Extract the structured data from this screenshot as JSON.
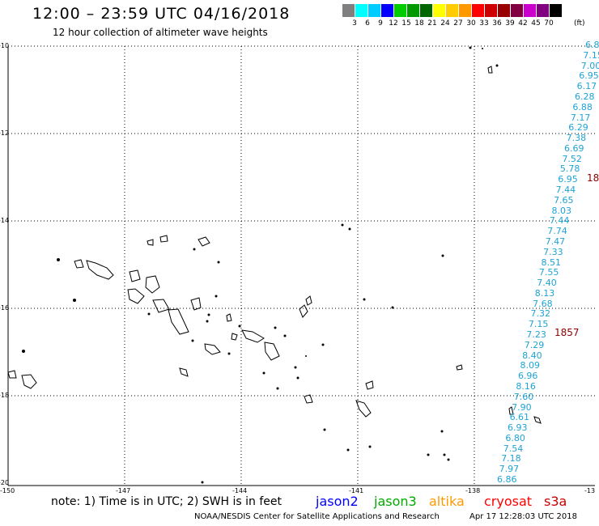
{
  "title": "12:00 – 23:59 UTC 04/16/2018",
  "subtitle": "12 hour collection of altimeter wave heights",
  "colorbar": {
    "colors": [
      "#808080",
      "#00ffff",
      "#00ccff",
      "#0000ff",
      "#00cc00",
      "#009900",
      "#006600",
      "#ffff00",
      "#ffcc00",
      "#ff9900",
      "#ff0000",
      "#cc0000",
      "#990000",
      "#800040",
      "#cc00cc",
      "#800080",
      "#000000"
    ],
    "labels": [
      "3",
      "6",
      "9",
      "12",
      "15",
      "18",
      "21",
      "24",
      "27",
      "30",
      "33",
      "36",
      "39",
      "42",
      "45",
      "70"
    ],
    "unit": "(ft)"
  },
  "axes": {
    "lat_labels": [
      "-10",
      "-12",
      "-14",
      "-16",
      "-18",
      "-20"
    ],
    "lon_labels": [
      "-150",
      "-147",
      "-144",
      "-141",
      "-138",
      "-13"
    ]
  },
  "wave_values": [
    "6.8",
    "7.15",
    "7.00",
    "6.95",
    "6.17",
    "6.28",
    "6.88",
    "7.17",
    "6.29",
    "7.38",
    "6.69",
    "7.52",
    "5.78",
    "6.95",
    "7.44",
    "7.65",
    "8.03",
    "7.44",
    "7.74",
    "7.47",
    "7.33",
    "8.51",
    "7.55",
    "7.40",
    "8.13",
    "7.68",
    "7.32",
    "7.15",
    "7.23",
    "7.29",
    "8.40",
    "8.09",
    "6.96",
    "8.16",
    "7.60",
    "7.90",
    "6.61",
    "6.93",
    "6.80",
    "7.54",
    "7.18",
    "7.97",
    "6.86"
  ],
  "markers": [
    "18",
    "1857"
  ],
  "note": "note: 1) Time is in UTC; 2) SWH is in feet",
  "legend": [
    {
      "label": "jason2",
      "color": "#0000ff"
    },
    {
      "label": "jason3",
      "color": "#00aa00"
    },
    {
      "label": "altika",
      "color": "#ff9900"
    },
    {
      "label": "cryosat",
      "color": "#ff0000"
    },
    {
      "label": "s3a",
      "color": "#cc0000"
    }
  ],
  "footer_left": "NOAA/NESDIS Center for Satellite Applications and Research",
  "footer_right": "Apr 17 12:28:03 UTC 2018"
}
